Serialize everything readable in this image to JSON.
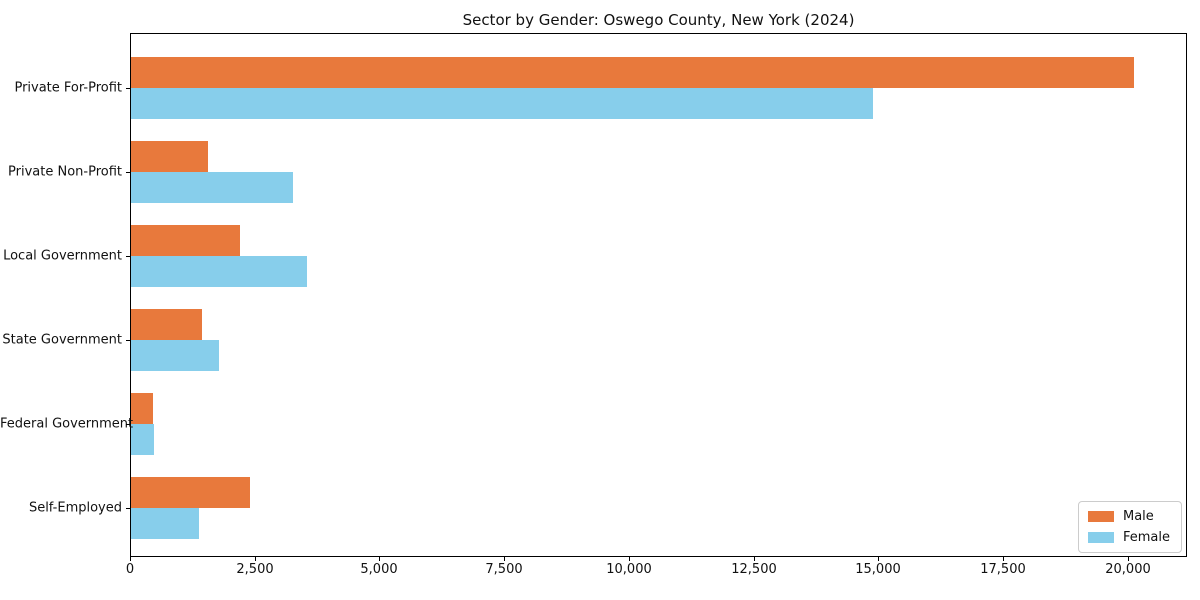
{
  "chart_data": {
    "type": "bar",
    "orientation": "horizontal",
    "title": "Sector by Gender: Oswego County, New York (2024)",
    "categories": [
      "Private For-Profit",
      "Private Non-Profit",
      "Local Government",
      "State Government",
      "Federal Government",
      "Self-Employed"
    ],
    "series": [
      {
        "name": "Male",
        "color": "#e8793c",
        "values": [
          20100,
          1550,
          2180,
          1420,
          450,
          2380
        ]
      },
      {
        "name": "Female",
        "color": "#87ceeb",
        "values": [
          14880,
          3240,
          3520,
          1760,
          470,
          1360
        ]
      }
    ],
    "xlabel": "",
    "ylabel": "",
    "xlim": [
      0,
      21150
    ],
    "xticks": [
      0,
      2500,
      5000,
      7500,
      10000,
      12500,
      15000,
      17500,
      20000
    ],
    "xtick_labels": [
      "0",
      "2,500",
      "5,000",
      "7,500",
      "10,000",
      "12,500",
      "15,000",
      "17,500",
      "20,000"
    ],
    "grid": false,
    "legend": {
      "position": "lower right",
      "entries": [
        "Male",
        "Female"
      ]
    },
    "colors": {
      "background": "#ffffff",
      "spine": "#000000",
      "text": "#111111",
      "legend_border": "#cccccc"
    }
  }
}
